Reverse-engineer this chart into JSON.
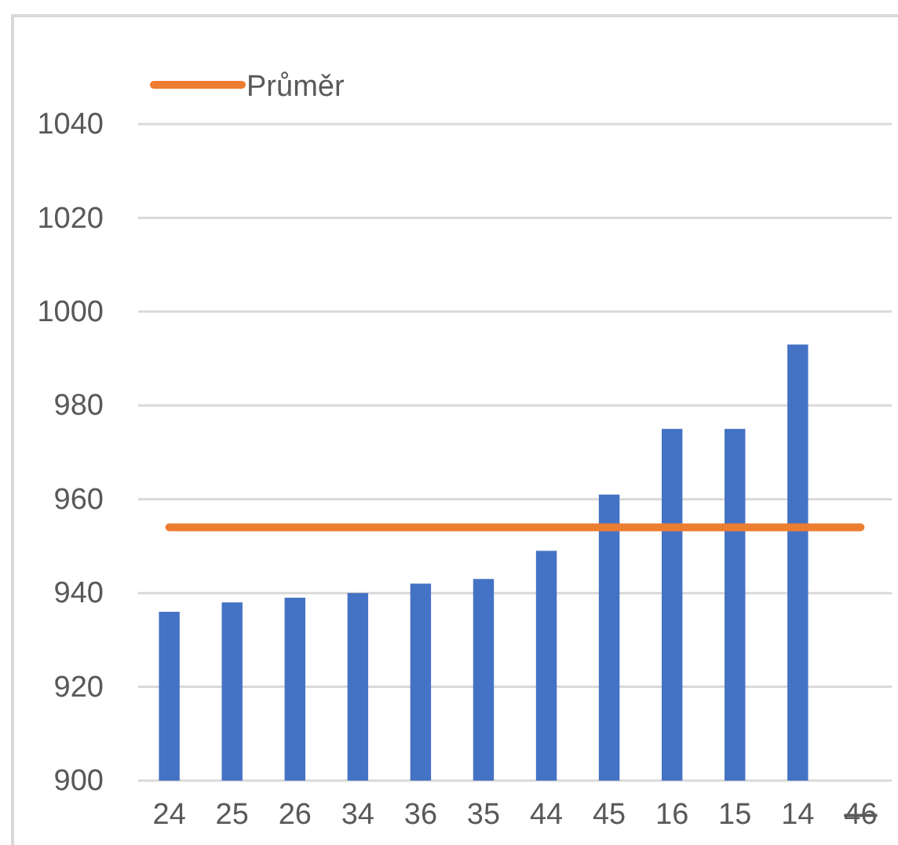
{
  "chart_data": {
    "type": "bar",
    "categories": [
      "24",
      "25",
      "26",
      "34",
      "36",
      "35",
      "44",
      "45",
      "16",
      "15",
      "14",
      "46"
    ],
    "series": [
      {
        "color": "#4472c4",
        "values": [
          936,
          938,
          939,
          940,
          942,
          943,
          949,
          961,
          975,
          975,
          993,
          null
        ]
      },
      {
        "type": "line",
        "name": "Průměr",
        "color": "#ed7d31",
        "values": [
          954,
          954,
          954,
          954,
          954,
          954,
          954,
          954,
          954,
          954,
          954,
          954
        ]
      }
    ],
    "ylim": [
      900,
      1040
    ],
    "yticks": [
      900,
      920,
      940,
      960,
      980,
      1000,
      1020,
      1040
    ],
    "grid": "y",
    "legend": "top left",
    "marker": "none",
    "line_style": "solid"
  }
}
